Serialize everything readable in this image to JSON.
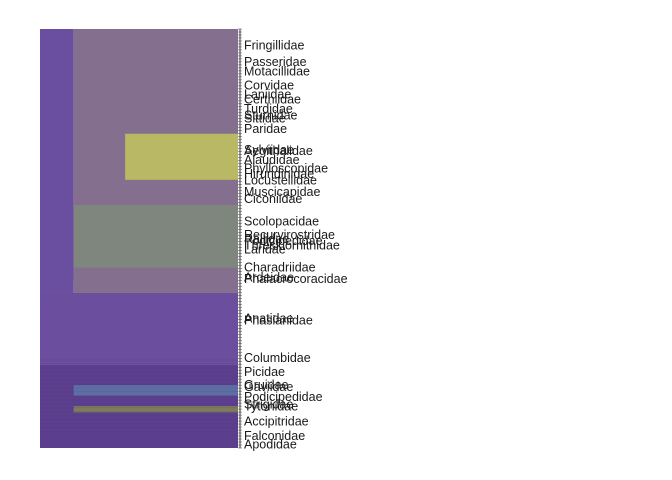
{
  "chart_data": {
    "type": "heatmap",
    "title": "",
    "xlabel": "",
    "ylabel": "",
    "colors": {
      "base": "#6b4e9e",
      "mid": "#856f8e",
      "gray": "#7f867e",
      "yellow": "#b8b865",
      "blue": "#5e6fa5",
      "olive": "#7f7d58",
      "purple": "#6a4fa0",
      "dark": "#5b3f8e"
    },
    "regions": [
      {
        "y0": 0,
        "y1": 0.63,
        "x0": 0.0,
        "x1": 0.17,
        "fill": "purple"
      },
      {
        "y0": 0,
        "y1": 0.63,
        "x0": 0.17,
        "x1": 1.0,
        "fill": "mid"
      },
      {
        "y0": 0.25,
        "y1": 0.36,
        "x0": 0.43,
        "x1": 1.0,
        "fill": "yellow"
      },
      {
        "y0": 0.42,
        "y1": 0.57,
        "x0": 0.17,
        "x1": 1.0,
        "fill": "gray"
      },
      {
        "y0": 0.57,
        "y1": 0.6,
        "x0": 0.17,
        "x1": 1.0,
        "fill": "mid"
      },
      {
        "y0": 0.63,
        "y1": 0.8,
        "x0": 0.0,
        "x1": 1.0,
        "fill": "base"
      },
      {
        "y0": 0.8,
        "y1": 1.0,
        "x0": 0.0,
        "x1": 1.0,
        "fill": "dark"
      },
      {
        "y0": 0.85,
        "y1": 0.875,
        "x0": 0.17,
        "x1": 1.0,
        "fill": "blue"
      },
      {
        "y0": 0.9,
        "y1": 0.915,
        "x0": 0.17,
        "x1": 1.0,
        "fill": "olive"
      }
    ],
    "labels": [
      {
        "text": "Fringillidae",
        "pos": 0.038
      },
      {
        "text": "Passeridae",
        "pos": 0.078
      },
      {
        "text": "Motacillidae",
        "pos": 0.1
      },
      {
        "text": "Corvidae",
        "pos": 0.134
      },
      {
        "text": "Laniidae",
        "pos": 0.155
      },
      {
        "text": "Certhiidae",
        "pos": 0.167
      },
      {
        "text": "Turdidae",
        "pos": 0.19
      },
      {
        "text": "Sturnidae",
        "pos": 0.205
      },
      {
        "text": "Sittidae",
        "pos": 0.213
      },
      {
        "text": "Paridae",
        "pos": 0.238
      },
      {
        "text": "Sylviidae",
        "pos": 0.287
      },
      {
        "text": "Aegithalidae",
        "pos": 0.29
      },
      {
        "text": "Alaudidae",
        "pos": 0.312
      },
      {
        "text": "Phylloscopidae",
        "pos": 0.332
      },
      {
        "text": "Hirundinidae",
        "pos": 0.345
      },
      {
        "text": "Locustellidae",
        "pos": 0.36
      },
      {
        "text": "Muscicapidae",
        "pos": 0.388
      },
      {
        "text": "Ciconiidae",
        "pos": 0.405
      },
      {
        "text": "Scolopacidae",
        "pos": 0.458
      },
      {
        "text": "Recurvirostridae",
        "pos": 0.49
      },
      {
        "text": "Rallidae",
        "pos": 0.5
      },
      {
        "text": "Podicipedidae",
        "pos": 0.505
      },
      {
        "text": "Threskiornithidae",
        "pos": 0.515
      },
      {
        "text": "Laridae",
        "pos": 0.525
      },
      {
        "text": "Charadriidae",
        "pos": 0.568
      },
      {
        "text": "Ardeidae",
        "pos": 0.592
      },
      {
        "text": "Phalacrocoracidae",
        "pos": 0.595
      },
      {
        "text": "Anatidae",
        "pos": 0.69
      },
      {
        "text": "Phasianidae",
        "pos": 0.695
      },
      {
        "text": "Columbidae",
        "pos": 0.784
      },
      {
        "text": "Picidae",
        "pos": 0.818
      },
      {
        "text": "Gruidae",
        "pos": 0.848
      },
      {
        "text": "Gaviidae",
        "pos": 0.853
      },
      {
        "text": "Podicipedidae",
        "pos": 0.877
      },
      {
        "text": "Strigidae",
        "pos": 0.895
      },
      {
        "text": "Tytonidae",
        "pos": 0.9
      },
      {
        "text": "Accipitridae",
        "pos": 0.935
      },
      {
        "text": "Falconidae",
        "pos": 0.97
      },
      {
        "text": "Apodidae",
        "pos": 0.99
      }
    ]
  }
}
